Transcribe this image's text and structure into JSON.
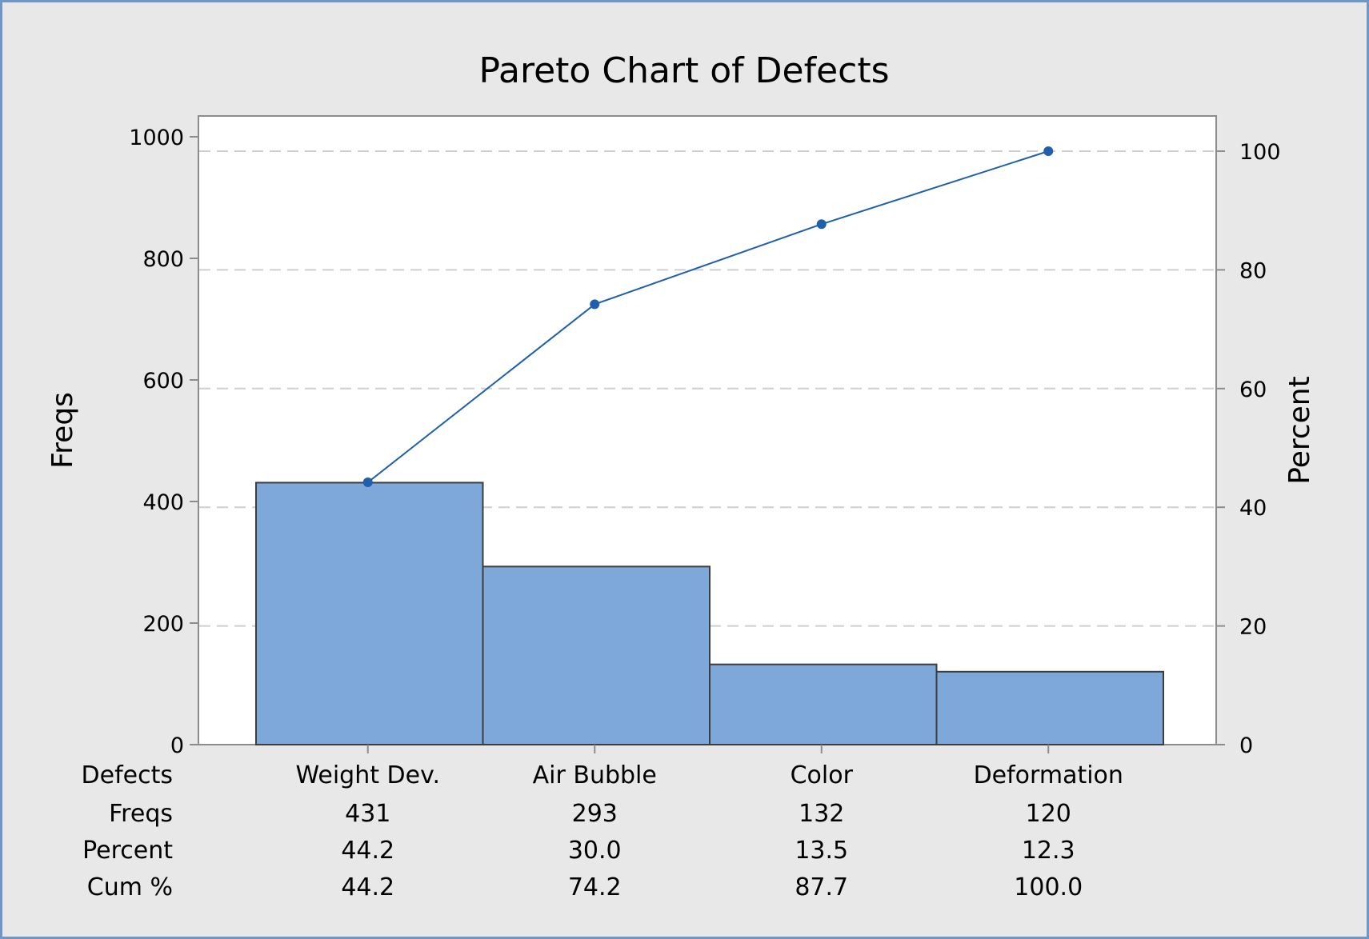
{
  "chart_data": {
    "type": "bar",
    "title": "Pareto Chart of Defects",
    "ylabel": "Freqs",
    "y2label": "Percent",
    "ylim": [
      0,
      1000
    ],
    "y2lim": [
      0,
      100
    ],
    "yticks": [
      "0",
      "200",
      "400",
      "600",
      "800",
      "1000"
    ],
    "y2ticks": [
      "0",
      "20",
      "40",
      "60",
      "80",
      "100"
    ],
    "y2_tick_values": [
      0,
      20,
      40,
      60,
      80,
      100
    ],
    "grid": true,
    "categories": [
      "Weight Dev.",
      "Air Bubble",
      "Color",
      "Deformation"
    ],
    "series": [
      {
        "name": "Freqs",
        "type": "bar",
        "values": [
          431,
          293,
          132,
          120
        ]
      },
      {
        "name": "Cum %",
        "type": "line",
        "values": [
          44.2,
          74.2,
          87.7,
          100.0
        ]
      }
    ],
    "bar_color": "#7ea7da",
    "line_color": "#1f5fad",
    "table": {
      "row_labels": [
        "Defects",
        "Freqs",
        "Percent",
        "Cum %"
      ],
      "rows": [
        [
          "Weight Dev.",
          "Air Bubble",
          "Color",
          "Deformation"
        ],
        [
          "431",
          "293",
          "132",
          "120"
        ],
        [
          "44.2",
          "30.0",
          "13.5",
          "12.3"
        ],
        [
          "44.2",
          "74.2",
          "87.7",
          "100.0"
        ]
      ]
    }
  }
}
